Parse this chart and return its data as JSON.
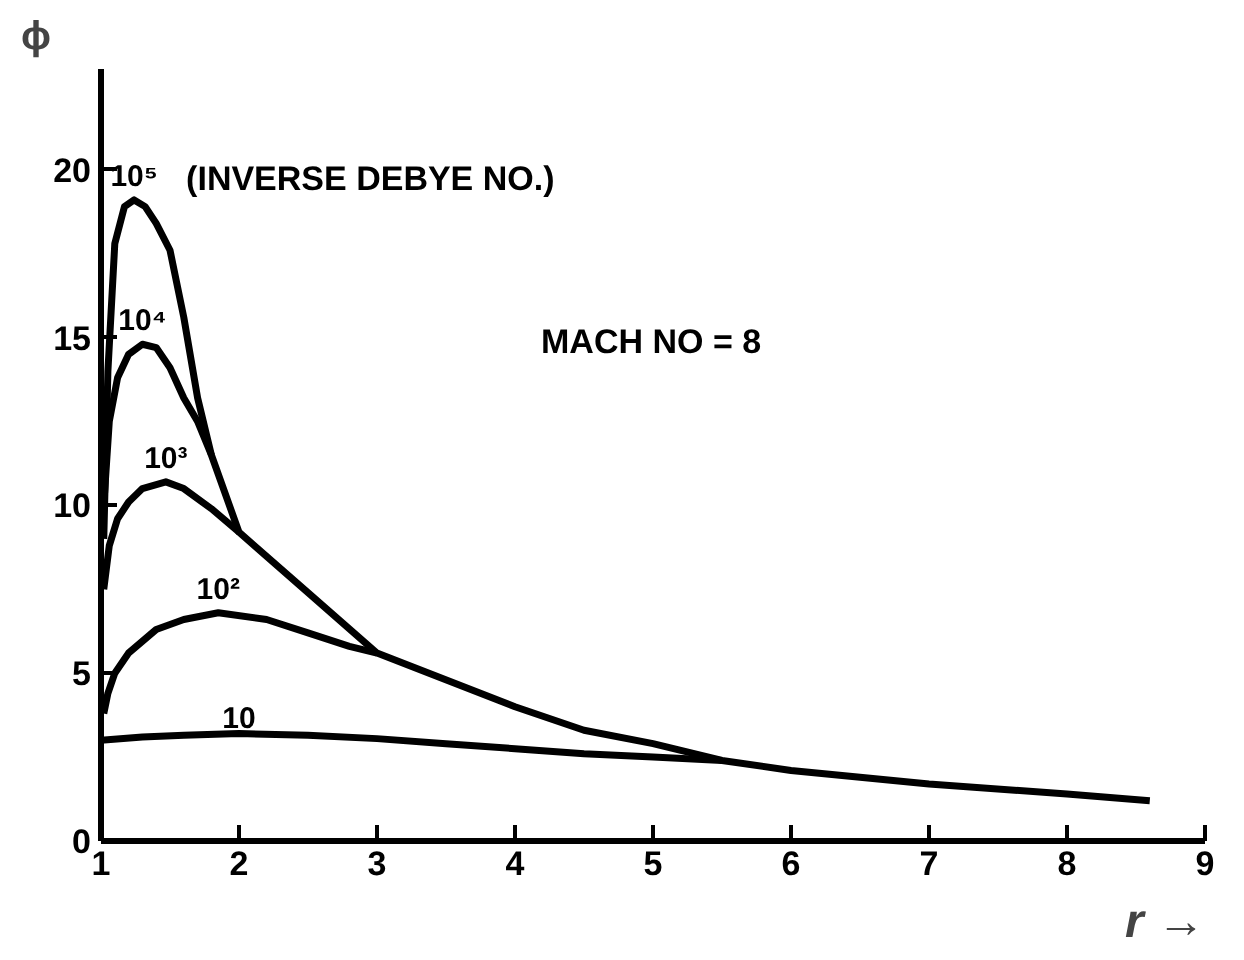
{
  "chart_data": {
    "type": "line",
    "xlabel": "r →",
    "ylabel": "ϕ",
    "xlim": [
      1,
      9
    ],
    "ylim": [
      0,
      23
    ],
    "xticks": [
      1,
      2,
      3,
      4,
      5,
      6,
      7,
      8,
      9
    ],
    "yticks": [
      0,
      5,
      10,
      15,
      20
    ],
    "grid": false,
    "marker": "none",
    "line_style": "solid",
    "annotations": [
      "(INVERSE DEBYE NO.)",
      "MACH NO = 8"
    ],
    "series": [
      {
        "name": "10⁵",
        "color": "#000000",
        "x": [
          1.02,
          1.05,
          1.1,
          1.17,
          1.24,
          1.32,
          1.4,
          1.5,
          1.6,
          1.7,
          1.8,
          2.0,
          2.5,
          3,
          4,
          4.5,
          5,
          5.5,
          6,
          7,
          8,
          8.6
        ],
        "values": [
          9,
          14,
          17.8,
          18.9,
          19.1,
          18.9,
          18.4,
          17.6,
          15.6,
          13.2,
          11.5,
          9.2,
          7.4,
          5.6,
          4.0,
          3.3,
          2.9,
          2.4,
          2.1,
          1.7,
          1.4,
          1.2
        ]
      },
      {
        "name": "10⁴",
        "color": "#000000",
        "x": [
          1.02,
          1.06,
          1.12,
          1.2,
          1.3,
          1.4,
          1.5,
          1.6,
          1.7,
          1.8
        ],
        "values": [
          10,
          12.5,
          13.8,
          14.5,
          14.8,
          14.7,
          14.1,
          13.2,
          12.5,
          11.5
        ]
      },
      {
        "name": "10³",
        "color": "#000000",
        "x": [
          1.02,
          1.06,
          1.12,
          1.2,
          1.3,
          1.47,
          1.6,
          1.8,
          2.0
        ],
        "values": [
          7.5,
          8.8,
          9.6,
          10.1,
          10.5,
          10.7,
          10.5,
          9.9,
          9.2
        ]
      },
      {
        "name": "10²",
        "color": "#000000",
        "x": [
          1.02,
          1.05,
          1.1,
          1.2,
          1.4,
          1.6,
          1.85,
          2.2,
          2.5,
          2.8,
          3.0
        ],
        "values": [
          3.8,
          4.4,
          5.0,
          5.6,
          6.3,
          6.6,
          6.8,
          6.6,
          6.2,
          5.8,
          5.6
        ]
      },
      {
        "name": "10",
        "color": "#000000",
        "x": [
          1.0,
          1.3,
          1.6,
          2.0,
          2.5,
          3.0,
          3.5,
          4.0,
          4.5,
          5.0,
          5.5
        ],
        "values": [
          3.0,
          3.1,
          3.15,
          3.2,
          3.15,
          3.05,
          2.9,
          2.75,
          2.6,
          2.5,
          2.4
        ]
      }
    ]
  }
}
